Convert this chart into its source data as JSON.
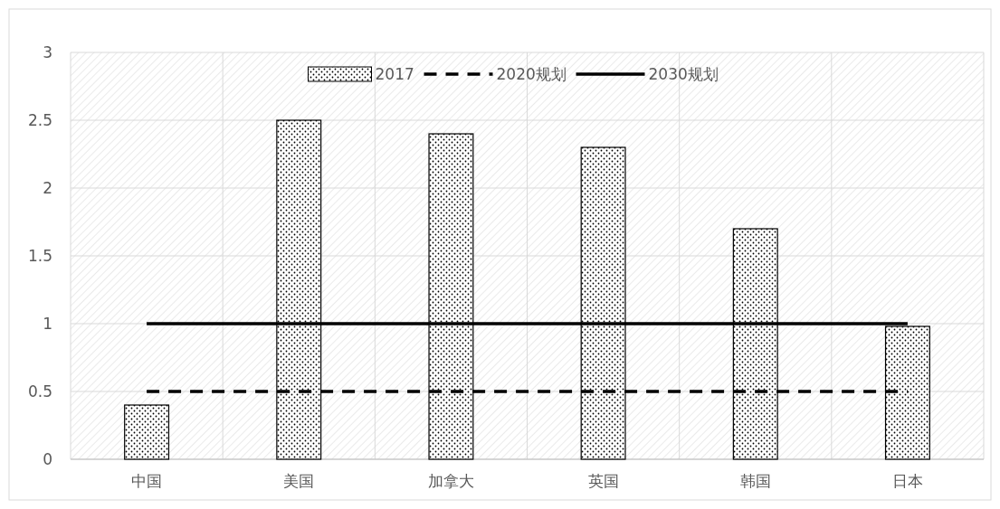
{
  "chart_data": {
    "type": "bar",
    "categories": [
      "中国",
      "美国",
      "加拿大",
      "英国",
      "韩国",
      "日本"
    ],
    "series": [
      {
        "name": "2017",
        "color": "#000000",
        "values": [
          0.4,
          2.5,
          2.4,
          2.3,
          1.7,
          0.98
        ]
      },
      {
        "name": "2020规划",
        "type": "line",
        "color": "#000000",
        "line_style": "dashed",
        "values": [
          0.5,
          0.5,
          0.5,
          0.5,
          0.5,
          0.5
        ]
      },
      {
        "name": "2030规划",
        "type": "line",
        "color": "#000000",
        "line_style": "solid",
        "values": [
          1,
          1,
          1,
          1,
          1,
          1
        ]
      }
    ],
    "ylim": [
      0,
      3
    ],
    "yticks": [
      0,
      0.5,
      1,
      1.5,
      2,
      2.5,
      3
    ],
    "grid": true,
    "legend": "top"
  }
}
